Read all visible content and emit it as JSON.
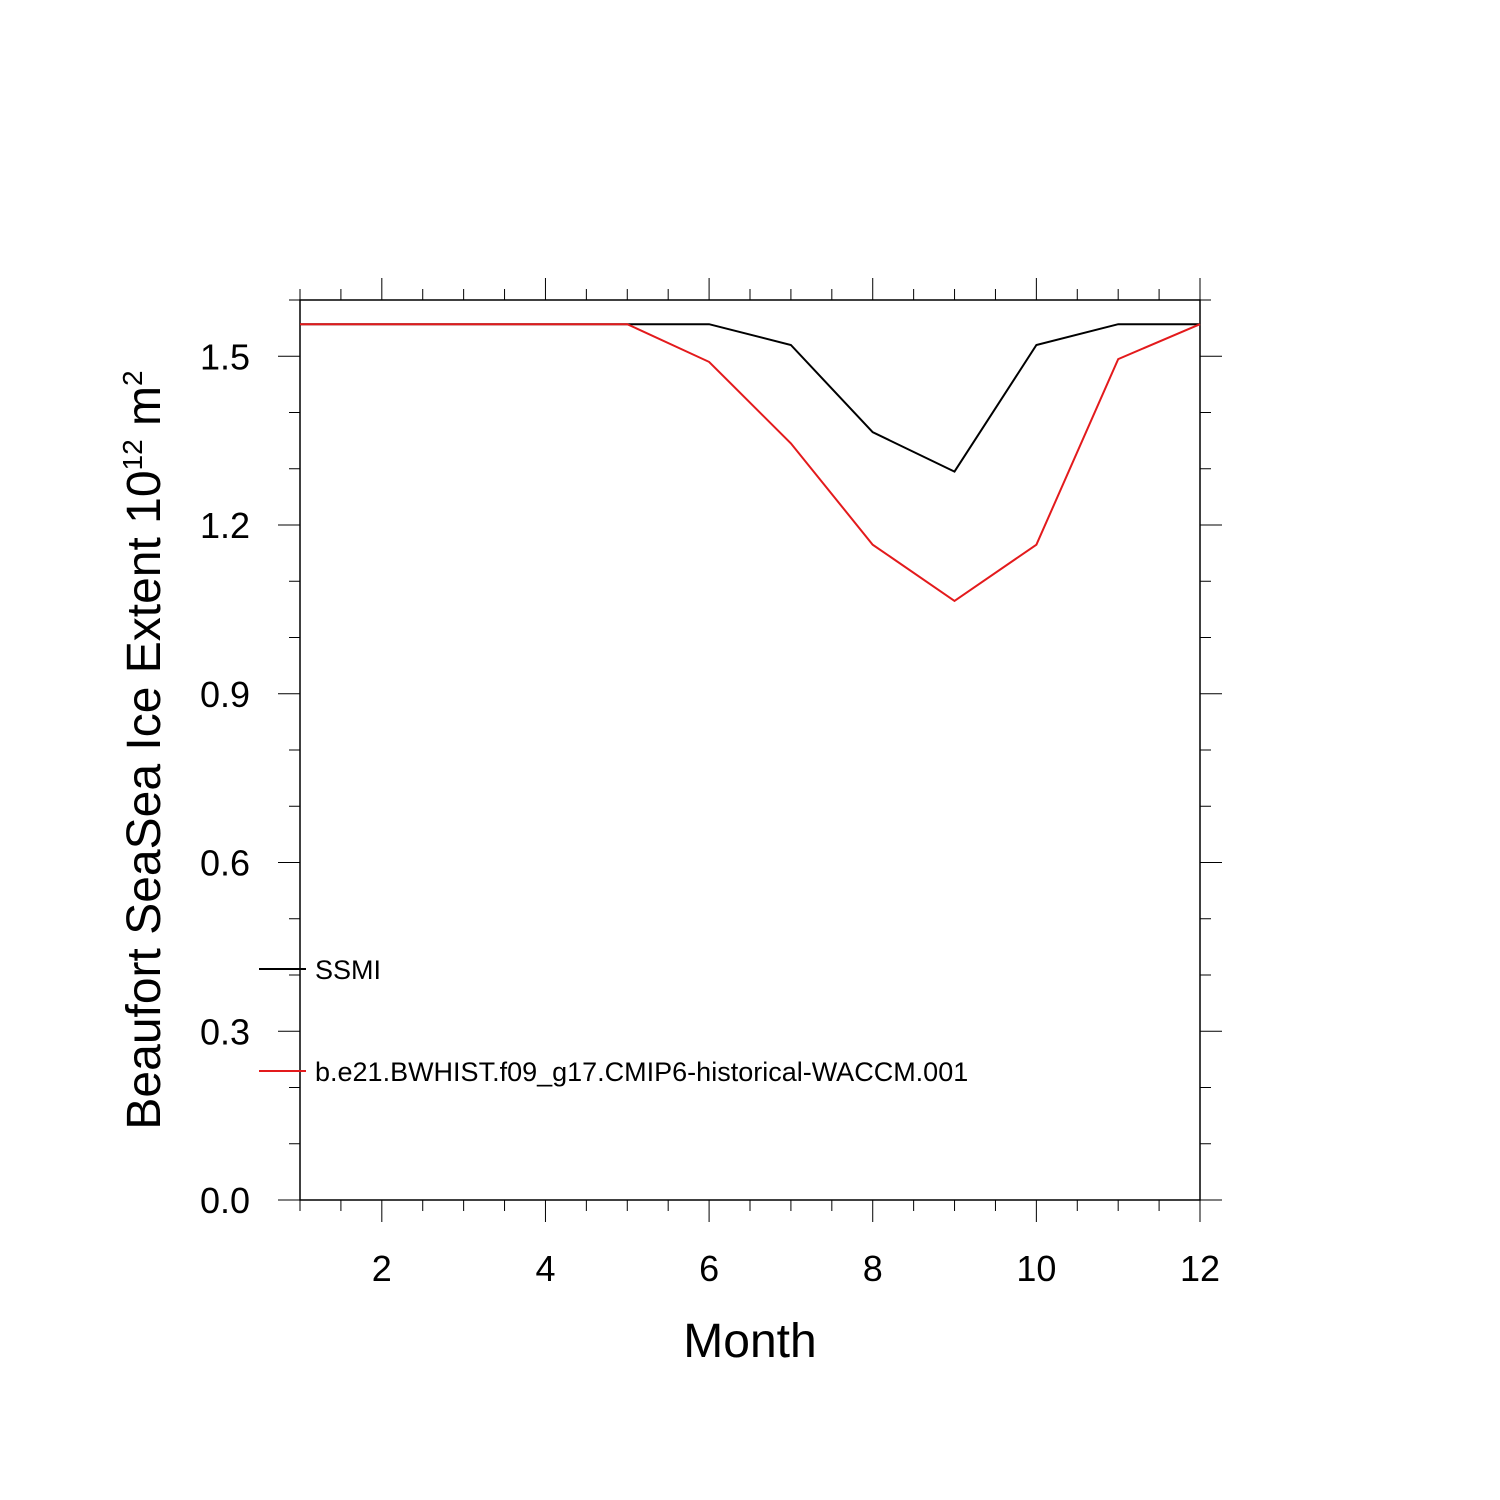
{
  "chart_data": {
    "type": "line",
    "xlabel": "Month",
    "ylabel": {
      "text": "Beaufort SeaSea Ice Extent 10",
      "exp1": "12",
      "unit": " m",
      "exp2": "2"
    },
    "xlim": [
      1,
      12
    ],
    "ylim": [
      0,
      1.6
    ],
    "x_ticks": [
      2,
      4,
      6,
      8,
      10,
      12
    ],
    "x_tick_labels": [
      "2",
      "4",
      "6",
      "8",
      "10",
      "12"
    ],
    "y_ticks": [
      0.0,
      0.3,
      0.6,
      0.9,
      1.2,
      1.5
    ],
    "y_tick_labels": [
      "0.0",
      "0.3",
      "0.6",
      "0.9",
      "1.2",
      "1.5"
    ],
    "x": [
      1,
      2,
      3,
      4,
      5,
      6,
      7,
      8,
      9,
      10,
      11,
      12
    ],
    "series": [
      {
        "name": "SSMI",
        "color": "#000000",
        "values": [
          1.557,
          1.557,
          1.557,
          1.557,
          1.557,
          1.557,
          1.52,
          1.365,
          1.295,
          1.52,
          1.557,
          1.557
        ]
      },
      {
        "name": "b.e21.BWHIST.f09_g17.CMIP6-historical-WACCM.001",
        "color": "#e31a1c",
        "values": [
          1.557,
          1.557,
          1.557,
          1.557,
          1.557,
          1.49,
          1.345,
          1.165,
          1.065,
          1.165,
          1.495,
          1.557
        ]
      }
    ],
    "legend_placement": "lower-left",
    "grid": false
  }
}
